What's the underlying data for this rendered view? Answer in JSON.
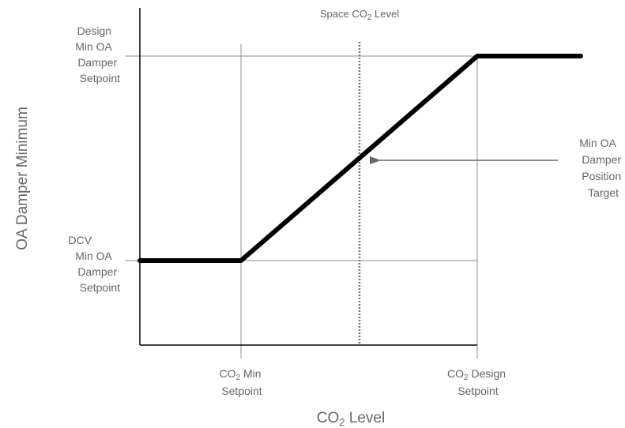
{
  "labels": {
    "space_co2_level": {
      "pre": "Space CO",
      "sub": "2",
      "post": " Level"
    },
    "y_axis": "OA Damper Minimum",
    "x_axis": {
      "pre": "CO",
      "sub": "2",
      "post": " Level"
    },
    "design_min_oa": [
      "Design",
      "Min OA",
      "Damper",
      "Setpoint"
    ],
    "dcv_min_oa": [
      "DCV",
      "Min OA",
      "Damper",
      "Setpoint"
    ],
    "target": [
      "Min OA",
      "Damper",
      "Position",
      "Target"
    ],
    "co2_min_setpoint": {
      "line1_pre": "CO",
      "line1_sub": "2",
      "line1_post": " Min",
      "line2": "Setpoint"
    },
    "co2_design_setpoint": {
      "line1_pre": "CO",
      "line1_sub": "2",
      "line1_post": " Design",
      "line2": "Setpoint"
    }
  },
  "colors": {
    "curve": "#000000",
    "axes": "#000000",
    "guides": "#8c8c8c",
    "dotted_marker": "#777777",
    "arrow": "#666666",
    "text": "#666666"
  }
}
